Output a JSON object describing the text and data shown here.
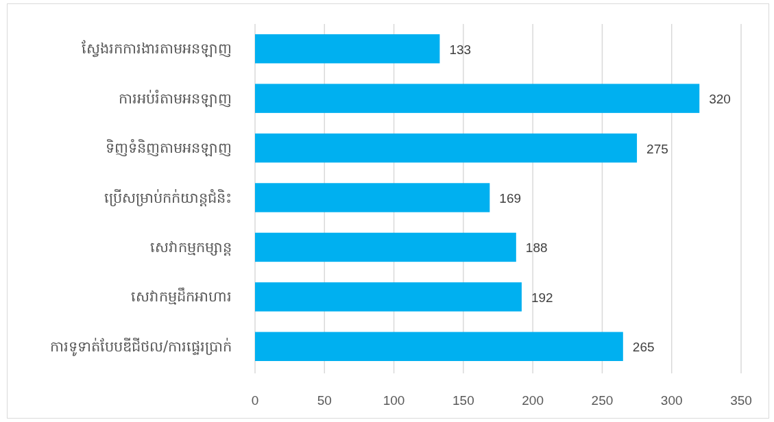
{
  "chart_data": {
    "type": "bar",
    "orientation": "horizontal",
    "categories": [
      "ស្វែងរកការងារតាមអនឡាញ",
      "ការអប់រំតាមអនឡាញ",
      "ទិញទំនិញតាមអនឡាញ",
      "ប្រើសម្រាប់កក់យាន្តជំនិះ",
      "សេវាកម្មកម្សាន្ត",
      "សេវាកម្មដឹកអាហារ",
      "ការទូទាត់បែបឌីជីថល/ការផ្ទេរប្រាក់"
    ],
    "values": [
      133,
      320,
      275,
      169,
      188,
      192,
      265
    ],
    "color": "#00b0f0",
    "xlim": [
      0,
      350
    ],
    "xticks": [
      0,
      50,
      100,
      150,
      200,
      250,
      300,
      350
    ],
    "grid": "x",
    "data_labels": true
  }
}
